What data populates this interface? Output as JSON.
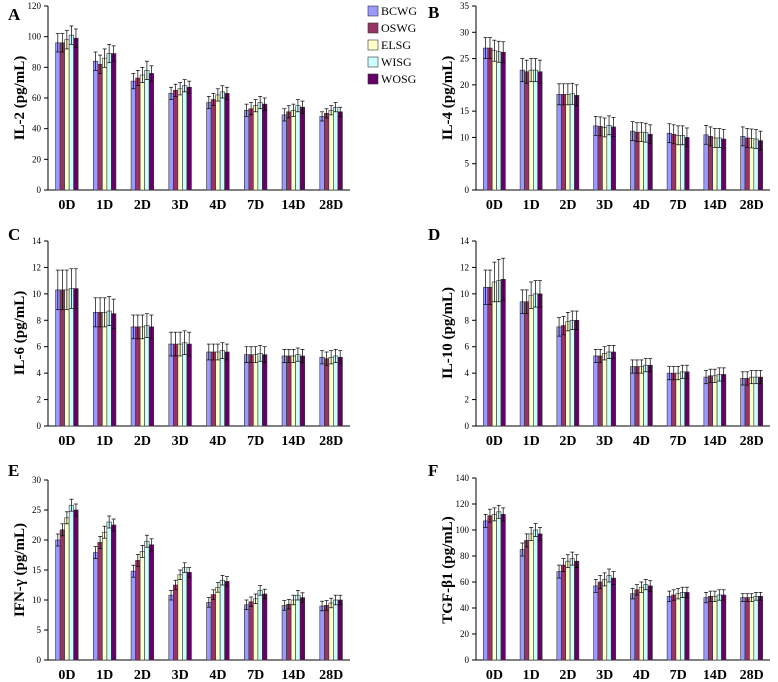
{
  "colors": {
    "BCWG": "#9999ff",
    "OSWG": "#993366",
    "ELSG": "#ffffcc",
    "WISG": "#ccffff",
    "WOSG": "#660066"
  },
  "legend": [
    "BCWG",
    "OSWG",
    "ELSG",
    "WISG",
    "WOSG"
  ],
  "chart_data": [
    {
      "panel": "A",
      "type": "bar",
      "ylabel": "IL-2 (pg/mL)",
      "ylim": [
        0,
        120
      ],
      "yticks": [
        0,
        20,
        40,
        60,
        80,
        100,
        120
      ],
      "categories": [
        "0D",
        "1D",
        "2D",
        "3D",
        "4D",
        "7D",
        "14D",
        "28D"
      ],
      "series": [
        {
          "name": "BCWG",
          "values": [
            96,
            84,
            71,
            63,
            57,
            52,
            49,
            48
          ],
          "errors": [
            6,
            6,
            5,
            4,
            4,
            4,
            4,
            3
          ]
        },
        {
          "name": "OSWG",
          "values": [
            96,
            82,
            73,
            65,
            59,
            53,
            51,
            50
          ],
          "errors": [
            6,
            6,
            5,
            4,
            4,
            4,
            4,
            3
          ]
        },
        {
          "name": "ELSG",
          "values": [
            98,
            86,
            75,
            66,
            62,
            55,
            52,
            52
          ],
          "errors": [
            6,
            6,
            5,
            4,
            4,
            4,
            4,
            3
          ]
        },
        {
          "name": "WISG",
          "values": [
            101,
            89,
            78,
            68,
            64,
            57,
            55,
            54
          ],
          "errors": [
            6,
            6,
            6,
            4,
            4,
            4,
            4,
            3
          ]
        },
        {
          "name": "WOSG",
          "values": [
            99,
            89,
            76,
            67,
            63,
            56,
            54,
            51
          ],
          "errors": [
            6,
            5,
            5,
            4,
            4,
            4,
            4,
            3
          ]
        }
      ]
    },
    {
      "panel": "B",
      "type": "bar",
      "ylabel": "IL-4 (pg/mL)",
      "ylim": [
        0,
        35
      ],
      "yticks": [
        0,
        5,
        10,
        15,
        20,
        25,
        30,
        35
      ],
      "categories": [
        "0D",
        "1D",
        "2D",
        "3D",
        "4D",
        "7D",
        "14D",
        "28D"
      ],
      "series": [
        {
          "name": "BCWG",
          "values": [
            27,
            22.8,
            18.2,
            12.2,
            11.2,
            10.8,
            10.5,
            10.2
          ],
          "errors": [
            2,
            2.2,
            2,
            1.8,
            1.8,
            1.8,
            1.8,
            1.8
          ]
        },
        {
          "name": "OSWG",
          "values": [
            27,
            22.5,
            18.2,
            12.1,
            11,
            10.6,
            10.2,
            9.9
          ],
          "errors": [
            2,
            2.2,
            2,
            1.8,
            1.8,
            1.8,
            1.8,
            1.8
          ]
        },
        {
          "name": "ELSG",
          "values": [
            26.5,
            22.8,
            18.2,
            11.9,
            11,
            10.4,
            9.9,
            9.8
          ],
          "errors": [
            2,
            2.2,
            2,
            1.8,
            1.8,
            1.8,
            1.8,
            1.8
          ]
        },
        {
          "name": "WISG",
          "values": [
            26.3,
            22.8,
            18.3,
            12.3,
            10.9,
            10.4,
            9.9,
            9.7
          ],
          "errors": [
            2,
            2.2,
            2,
            1.8,
            1.8,
            1.8,
            1.8,
            1.8
          ]
        },
        {
          "name": "WOSG",
          "values": [
            26.2,
            22.5,
            18,
            12,
            10.6,
            10,
            9.7,
            9.4
          ],
          "errors": [
            2,
            2.2,
            2,
            1.8,
            1.8,
            1.8,
            1.8,
            1.8
          ]
        }
      ]
    },
    {
      "panel": "C",
      "type": "bar",
      "ylabel": "IL-6 (pg/mL)",
      "ylim": [
        0,
        14
      ],
      "yticks": [
        0,
        2,
        4,
        6,
        8,
        10,
        12,
        14
      ],
      "categories": [
        "0D",
        "1D",
        "2D",
        "3D",
        "4D",
        "7D",
        "14D",
        "28D"
      ],
      "series": [
        {
          "name": "BCWG",
          "values": [
            10.3,
            8.6,
            7.5,
            6.2,
            5.6,
            5.4,
            5.3,
            5.2
          ],
          "errors": [
            1.5,
            1.1,
            0.9,
            0.9,
            0.6,
            0.6,
            0.5,
            0.5
          ]
        },
        {
          "name": "OSWG",
          "values": [
            10.3,
            8.6,
            7.5,
            6.2,
            5.6,
            5.4,
            5.3,
            5.1
          ],
          "errors": [
            1.5,
            1.1,
            0.9,
            0.9,
            0.6,
            0.6,
            0.5,
            0.5
          ]
        },
        {
          "name": "ELSG",
          "values": [
            10.3,
            8.6,
            7.5,
            6.2,
            5.6,
            5.4,
            5.3,
            5.2
          ],
          "errors": [
            1.5,
            1.1,
            0.9,
            0.9,
            0.6,
            0.6,
            0.5,
            0.5
          ]
        },
        {
          "name": "WISG",
          "values": [
            10.4,
            8.7,
            7.6,
            6.3,
            5.7,
            5.5,
            5.4,
            5.3
          ],
          "errors": [
            1.5,
            1.1,
            0.9,
            0.9,
            0.6,
            0.6,
            0.5,
            0.5
          ]
        },
        {
          "name": "WOSG",
          "values": [
            10.4,
            8.5,
            7.5,
            6.2,
            5.6,
            5.4,
            5.3,
            5.2
          ],
          "errors": [
            1.5,
            1.1,
            0.9,
            0.9,
            0.6,
            0.6,
            0.5,
            0.5
          ]
        }
      ]
    },
    {
      "panel": "D",
      "type": "bar",
      "ylabel": "IL-10 (pg/mL)",
      "ylim": [
        0,
        14
      ],
      "yticks": [
        0,
        2,
        4,
        6,
        8,
        10,
        12,
        14
      ],
      "categories": [
        "0D",
        "1D",
        "2D",
        "3D",
        "4D",
        "7D",
        "14D",
        "28D"
      ],
      "series": [
        {
          "name": "BCWG",
          "values": [
            10.5,
            9.4,
            7.5,
            5.3,
            4.5,
            4.0,
            3.7,
            3.6
          ],
          "errors": [
            1.3,
            0.9,
            0.7,
            0.5,
            0.5,
            0.5,
            0.5,
            0.5
          ]
        },
        {
          "name": "OSWG",
          "values": [
            10.5,
            9.4,
            7.6,
            5.3,
            4.5,
            4.0,
            3.8,
            3.6
          ],
          "errors": [
            1.3,
            0.9,
            0.7,
            0.5,
            0.5,
            0.5,
            0.5,
            0.5
          ]
        },
        {
          "name": "ELSG",
          "values": [
            10.9,
            9.9,
            7.9,
            5.5,
            4.5,
            4.0,
            3.8,
            3.7
          ],
          "errors": [
            1.5,
            1,
            0.7,
            0.5,
            0.5,
            0.5,
            0.5,
            0.5
          ]
        },
        {
          "name": "WISG",
          "values": [
            11.0,
            10.0,
            8.0,
            5.6,
            4.6,
            4.1,
            3.9,
            3.7
          ],
          "errors": [
            1.6,
            1,
            0.7,
            0.5,
            0.5,
            0.5,
            0.5,
            0.5
          ]
        },
        {
          "name": "WOSG",
          "values": [
            11.1,
            10.0,
            8.0,
            5.6,
            4.6,
            4.1,
            3.9,
            3.7
          ],
          "errors": [
            1.6,
            1,
            0.7,
            0.5,
            0.5,
            0.5,
            0.5,
            0.5
          ]
        }
      ]
    },
    {
      "panel": "E",
      "type": "bar",
      "ylabel": "IFN-γ (pg/mL)",
      "ylim": [
        0,
        30
      ],
      "yticks": [
        0,
        5,
        10,
        15,
        20,
        25,
        30
      ],
      "categories": [
        "0D",
        "1D",
        "2D",
        "3D",
        "4D",
        "7D",
        "14D",
        "28D"
      ],
      "series": [
        {
          "name": "BCWG",
          "values": [
            20,
            17.9,
            14.8,
            10.8,
            9.6,
            9.2,
            9.1,
            9.0
          ],
          "errors": [
            1,
            1,
            1,
            0.8,
            0.8,
            0.8,
            0.8,
            0.8
          ]
        },
        {
          "name": "OSWG",
          "values": [
            21.7,
            19.6,
            16.6,
            12.5,
            10.9,
            9.7,
            9.3,
            9.1
          ],
          "errors": [
            1,
            1,
            1,
            0.8,
            0.8,
            0.8,
            0.8,
            0.8
          ]
        },
        {
          "name": "ELSG",
          "values": [
            23.7,
            21.3,
            18.1,
            14.2,
            12.1,
            10.2,
            10.0,
            9.5
          ],
          "errors": [
            1,
            1,
            1,
            0.8,
            0.8,
            0.8,
            0.8,
            0.8
          ]
        },
        {
          "name": "WISG",
          "values": [
            25.8,
            23,
            19.8,
            15.4,
            13.3,
            11.6,
            10.8,
            10.0
          ],
          "errors": [
            1,
            1,
            1,
            0.8,
            0.8,
            0.8,
            0.8,
            0.8
          ]
        },
        {
          "name": "WOSG",
          "values": [
            25,
            22.5,
            19.2,
            14.6,
            13.1,
            11,
            10.4,
            10
          ],
          "errors": [
            1,
            1,
            1,
            0.8,
            0.8,
            0.8,
            0.8,
            0.8
          ]
        }
      ]
    },
    {
      "panel": "F",
      "type": "bar",
      "ylabel": "TGF-β1 (pg/mL)",
      "ylim": [
        0,
        140
      ],
      "yticks": [
        0,
        20,
        40,
        60,
        80,
        100,
        120,
        140
      ],
      "categories": [
        "0D",
        "1D",
        "2D",
        "3D",
        "4D",
        "7D",
        "14D",
        "28D"
      ],
      "series": [
        {
          "name": "BCWG",
          "values": [
            107,
            85,
            68,
            57,
            51,
            49,
            48,
            48
          ],
          "errors": [
            5,
            5,
            5,
            5,
            4,
            4,
            4,
            3
          ]
        },
        {
          "name": "OSWG",
          "values": [
            111,
            92,
            73,
            60,
            54,
            50,
            49,
            48
          ],
          "errors": [
            5,
            5,
            5,
            5,
            4,
            4,
            4,
            3
          ]
        },
        {
          "name": "ELSG",
          "values": [
            112,
            97,
            76,
            62,
            56,
            51,
            49,
            48
          ],
          "errors": [
            5,
            5,
            5,
            5,
            4,
            4,
            4,
            3
          ]
        },
        {
          "name": "WISG",
          "values": [
            114,
            100,
            78,
            65,
            58,
            52,
            50,
            49
          ],
          "errors": [
            5,
            5,
            5,
            5,
            4,
            4,
            4,
            3
          ]
        },
        {
          "name": "WOSG",
          "values": [
            112,
            97,
            76,
            63,
            57,
            52,
            50,
            49
          ],
          "errors": [
            5,
            5,
            5,
            5,
            4,
            4,
            4,
            3
          ]
        }
      ]
    }
  ]
}
